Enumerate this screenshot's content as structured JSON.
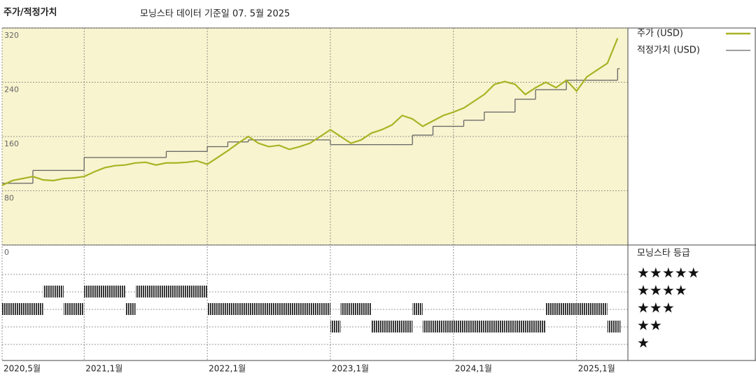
{
  "chart_data": [
    {
      "type": "line",
      "title": "주가/적정가치",
      "subtitle": "모닝스타 데이터 기준일 07. 5월 2025",
      "x": [
        "2020-05",
        "2020-06",
        "2020-07",
        "2020-08",
        "2020-09",
        "2020-10",
        "2020-11",
        "2020-12",
        "2021-01",
        "2021-02",
        "2021-03",
        "2021-04",
        "2021-05",
        "2021-06",
        "2021-07",
        "2021-08",
        "2021-09",
        "2021-10",
        "2021-11",
        "2021-12",
        "2022-01",
        "2022-02",
        "2022-03",
        "2022-04",
        "2022-05",
        "2022-06",
        "2022-07",
        "2022-08",
        "2022-09",
        "2022-10",
        "2022-11",
        "2022-12",
        "2023-01",
        "2023-02",
        "2023-03",
        "2023-04",
        "2023-05",
        "2023-06",
        "2023-07",
        "2023-08",
        "2023-09",
        "2023-10",
        "2023-11",
        "2023-12",
        "2024-01",
        "2024-02",
        "2024-03",
        "2024-04",
        "2024-05",
        "2024-06",
        "2024-07",
        "2024-08",
        "2024-09",
        "2024-10",
        "2024-11",
        "2024-12",
        "2025-01",
        "2025-02",
        "2025-03",
        "2025-04",
        "2025-05"
      ],
      "series": [
        {
          "name": "주가 (USD)",
          "color": "#a9b324",
          "values": [
            88,
            95,
            98,
            101,
            96,
            95,
            98,
            99,
            101,
            108,
            114,
            117,
            118,
            121,
            122,
            118,
            121,
            121,
            122,
            124,
            119,
            129,
            139,
            150,
            160,
            150,
            145,
            147,
            141,
            145,
            150,
            160,
            170,
            160,
            150,
            155,
            165,
            170,
            177,
            191,
            186,
            175,
            183,
            191,
            196,
            202,
            212,
            222,
            237,
            241,
            237,
            222,
            232,
            240,
            232,
            243,
            227,
            248,
            258,
            268,
            305
          ]
        },
        {
          "name": "적정가치 (USD)",
          "color": "#666666",
          "values": [
            91,
            91,
            91,
            110,
            110,
            110,
            110,
            110,
            129,
            129,
            129,
            129,
            129,
            129,
            129,
            129,
            138,
            138,
            138,
            138,
            145,
            145,
            152,
            152,
            155,
            155,
            155,
            155,
            155,
            155,
            155,
            155,
            148,
            148,
            148,
            148,
            148,
            148,
            148,
            148,
            162,
            162,
            175,
            175,
            175,
            184,
            184,
            196,
            196,
            196,
            215,
            215,
            229,
            229,
            229,
            243,
            243,
            243,
            243,
            243,
            260
          ]
        }
      ],
      "xlim": [
        "2020-05",
        "2025-06"
      ],
      "xticks": [
        {
          "value": "2020-05",
          "label": "2020,5월"
        },
        {
          "value": "2021-01",
          "label": "2021,1월"
        },
        {
          "value": "2022-01",
          "label": "2022,1월"
        },
        {
          "value": "2023-01",
          "label": "2023,1월"
        },
        {
          "value": "2024-01",
          "label": "2024,1월"
        },
        {
          "value": "2025-01",
          "label": "2025,1월"
        }
      ],
      "ylim": [
        0,
        320
      ],
      "yticks": [
        0,
        80,
        160,
        240,
        320
      ],
      "grid": true
    },
    {
      "type": "rating-strip",
      "title": "모닝스타 등급",
      "categories": [
        "★",
        "★★",
        "★★★",
        "★★★★",
        "★★★★★"
      ],
      "values": [
        3,
        3,
        3,
        3,
        4,
        4,
        3,
        3,
        4,
        4,
        4,
        4,
        3,
        4,
        4,
        4,
        4,
        4,
        4,
        4,
        3,
        3,
        3,
        3,
        3,
        3,
        3,
        3,
        3,
        3,
        3,
        3,
        2,
        3,
        3,
        3,
        2,
        2,
        2,
        2,
        3,
        2,
        2,
        2,
        2,
        2,
        2,
        2,
        2,
        2,
        2,
        2,
        2,
        3,
        3,
        3,
        3,
        3,
        3,
        2,
        2
      ],
      "color": "#222222"
    }
  ]
}
